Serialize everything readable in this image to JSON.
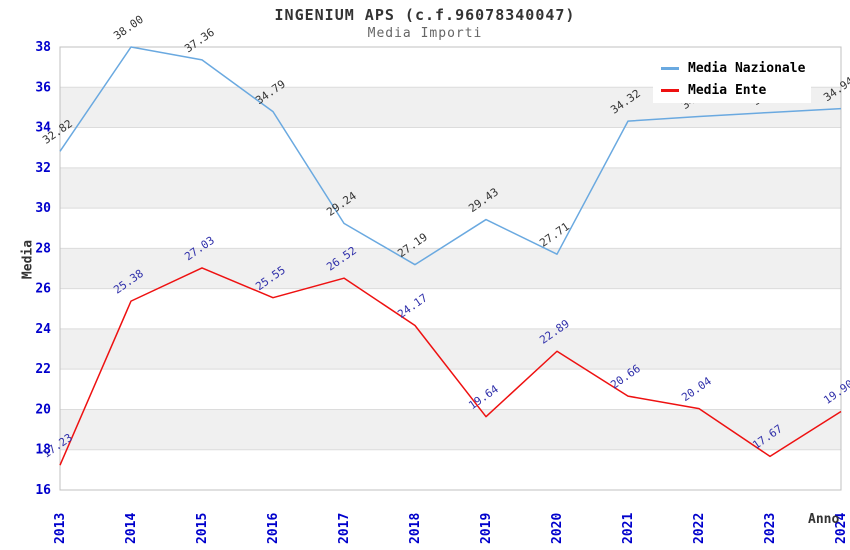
{
  "title": "INGENIUM APS (c.f.96078340047)",
  "subtitle": "Media Importi",
  "legend": [
    {
      "label": "Media Nazionale",
      "color": "#6aa9e0"
    },
    {
      "label": "Media Ente",
      "color": "#ee1111"
    }
  ],
  "chart_data": {
    "type": "line",
    "x": [
      "2013",
      "2014",
      "2015",
      "2016",
      "2017",
      "2018",
      "2019",
      "2020",
      "2021",
      "2022",
      "2023",
      "2024"
    ],
    "series": [
      {
        "name": "Media Nazionale",
        "color": "#6aa9e0",
        "label_color": "#333333",
        "values": [
          32.82,
          38.0,
          37.36,
          34.79,
          29.24,
          27.19,
          29.43,
          27.71,
          34.32,
          34.55,
          34.75,
          34.94
        ]
      },
      {
        "name": "Media Ente",
        "color": "#ee1111",
        "label_color": "#3030aa",
        "values": [
          17.23,
          25.38,
          27.03,
          25.55,
          26.52,
          24.17,
          19.64,
          22.89,
          20.66,
          20.04,
          17.67,
          19.9
        ]
      }
    ],
    "xlabel": "Anno",
    "ylabel": "Media",
    "ylim": [
      16,
      38
    ],
    "yticks": [
      16,
      18,
      20,
      22,
      24,
      26,
      28,
      30,
      32,
      34,
      36,
      38
    ],
    "tick_color": "#0000cc",
    "grid_color": "#dcdcdc",
    "band_color": "#f0f0f0",
    "border_color": "#c0c0c0",
    "label_decimals": 2,
    "legend_position": "top-right",
    "grid": true
  }
}
